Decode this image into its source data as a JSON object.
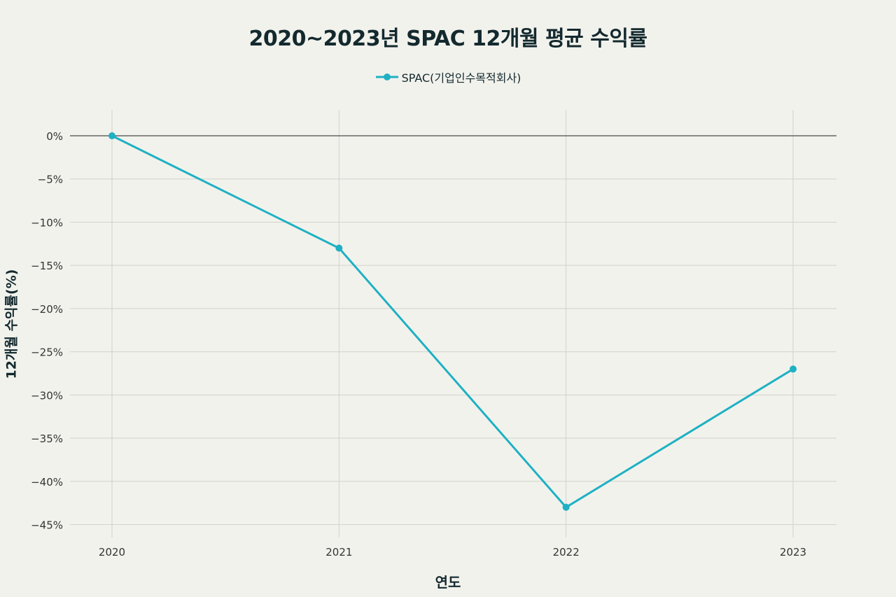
{
  "chart_data": {
    "type": "line",
    "title": "2020~2023년 SPAC 12개월 평균 수익률",
    "xlabel": "연도",
    "ylabel": "12개월 수익률(%)",
    "categories": [
      "2020",
      "2021",
      "2022",
      "2023"
    ],
    "series": [
      {
        "name": "SPAC(기업인수목적회사)",
        "values": [
          0,
          -13,
          -43,
          -27
        ],
        "color": "#1fb1c3"
      }
    ],
    "ylim": [
      -46.5,
      3
    ],
    "yticks": [
      0,
      -5,
      -10,
      -15,
      -20,
      -25,
      -30,
      -35,
      -40,
      -45
    ],
    "ytick_labels": [
      "0%",
      "−5%",
      "−10%",
      "−15%",
      "−20%",
      "−25%",
      "−30%",
      "−35%",
      "−40%",
      "−45%"
    ],
    "grid": true,
    "zero_line": true,
    "legend_position": "top-center",
    "background": "#f2f2ed"
  }
}
